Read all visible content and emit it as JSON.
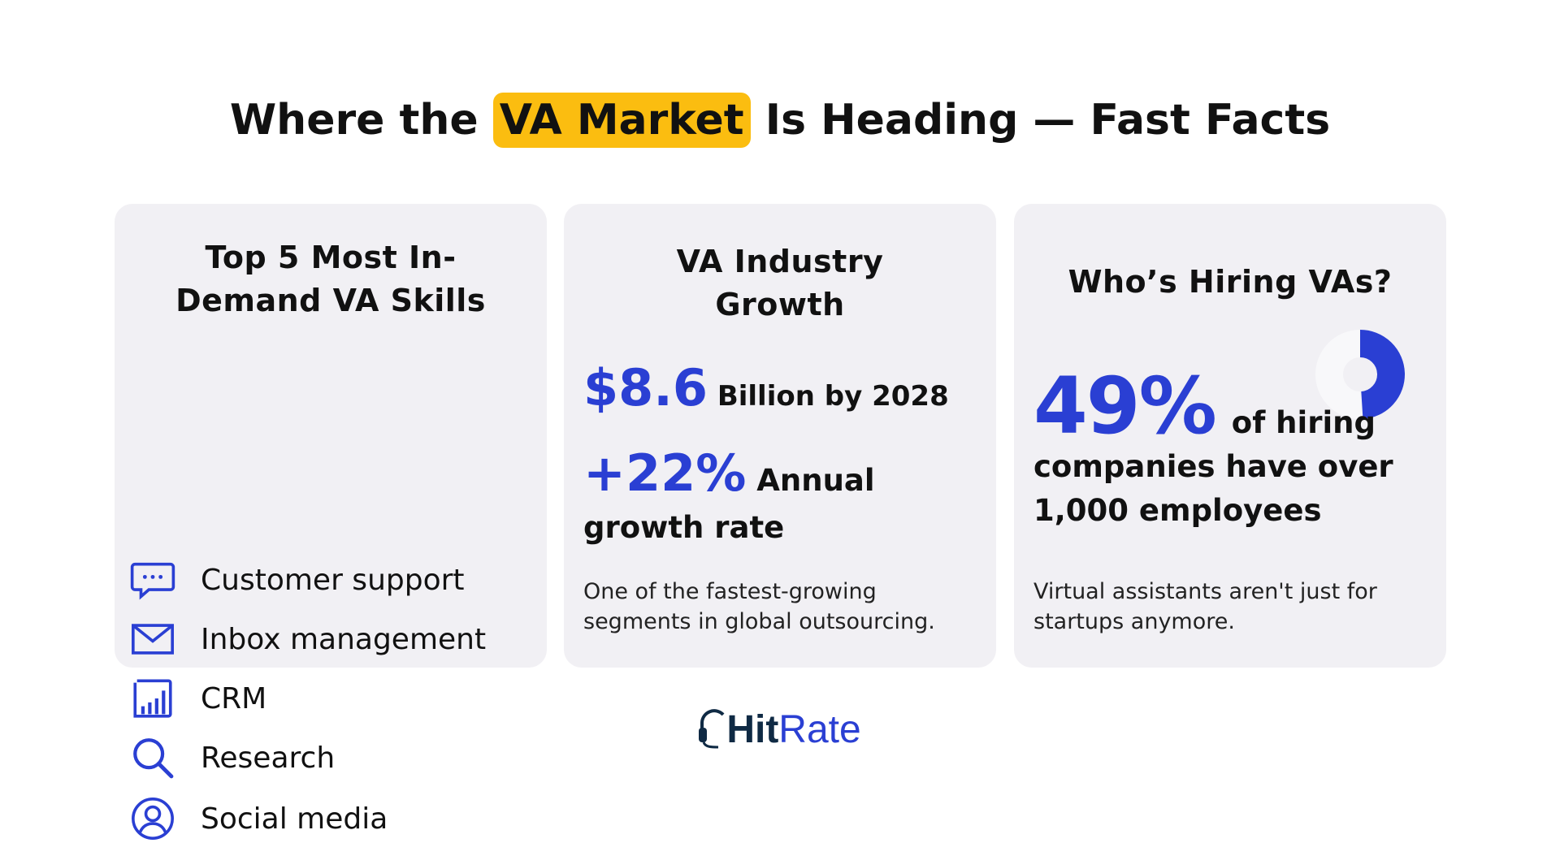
{
  "title": {
    "before": "Where the",
    "highlight": "VA Market",
    "after": "Is Heading — Fast Facts"
  },
  "cards": [
    {
      "title": "Top 5 Most In-Demand VA Skills",
      "items": [
        "Customer support",
        "Inbox management",
        "CRM",
        "Research",
        "Social media"
      ]
    },
    {
      "title": "VA Industry Growth",
      "stats": [
        {
          "figure": "$8.6",
          "text": "Billion by 2028"
        },
        {
          "figure": "+22%",
          "text": "Annual growth rate"
        }
      ],
      "note": "One of the fastest-growing segments in global outsourcing."
    },
    {
      "title": "Who’s Hiring VAs?",
      "stat": {
        "value": 49,
        "label": "49%"
      },
      "text": "of hiring companies have over 1,000 employees",
      "note": "Virtual assistants aren't just for startups anymore."
    }
  ],
  "logo": {
    "bold": "Hit",
    "light": "Rate"
  }
}
